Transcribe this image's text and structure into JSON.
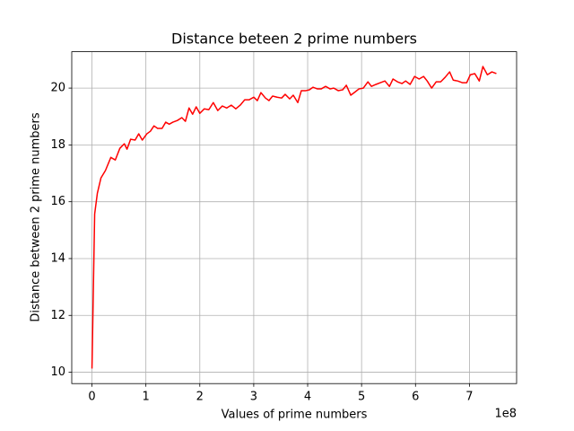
{
  "chart_data": {
    "type": "line",
    "title": "Distance beteen 2 prime numbers",
    "x_label": "Values of prime numbers",
    "y_label": "Distance between 2 prime numbers",
    "x_offset_label": "1e8",
    "x": [
      0,
      0.05,
      0.1,
      0.167,
      0.25,
      0.35,
      0.433,
      0.517,
      0.6,
      0.65,
      0.717,
      0.8,
      0.867,
      0.933,
      1.017,
      1.083,
      1.15,
      1.217,
      1.3,
      1.367,
      1.433,
      1.5,
      1.583,
      1.667,
      1.733,
      1.8,
      1.867,
      1.933,
      2.0,
      2.083,
      2.167,
      2.25,
      2.333,
      2.417,
      2.5,
      2.583,
      2.667,
      2.75,
      2.833,
      2.917,
      3.0,
      3.067,
      3.133,
      3.217,
      3.283,
      3.35,
      3.433,
      3.517,
      3.583,
      3.667,
      3.733,
      3.817,
      3.883,
      3.967,
      4.033,
      4.1,
      4.183,
      4.25,
      4.333,
      4.417,
      4.483,
      4.567,
      4.65,
      4.717,
      4.8,
      4.883,
      4.95,
      5.033,
      5.117,
      5.183,
      5.267,
      5.35,
      5.433,
      5.517,
      5.583,
      5.667,
      5.75,
      5.817,
      5.9,
      5.983,
      6.067,
      6.15,
      6.217,
      6.3,
      6.383,
      6.467,
      6.55,
      6.633,
      6.7,
      6.783,
      6.867,
      6.95,
      7.017,
      7.1,
      7.183,
      7.25,
      7.333,
      7.417,
      7.5
    ],
    "series": [
      {
        "color": "#ff0000",
        "values": [
          10.13,
          15.57,
          16.3,
          16.84,
          17.1,
          17.56,
          17.47,
          17.88,
          18.04,
          17.85,
          18.2,
          18.17,
          18.39,
          18.17,
          18.39,
          18.48,
          18.67,
          18.58,
          18.58,
          18.8,
          18.73,
          18.8,
          18.86,
          18.96,
          18.83,
          19.3,
          19.08,
          19.34,
          19.11,
          19.27,
          19.24,
          19.49,
          19.21,
          19.37,
          19.3,
          19.4,
          19.27,
          19.4,
          19.59,
          19.59,
          19.68,
          19.56,
          19.84,
          19.65,
          19.56,
          19.72,
          19.68,
          19.65,
          19.78,
          19.62,
          19.75,
          19.49,
          19.91,
          19.91,
          19.94,
          20.03,
          19.97,
          19.97,
          20.06,
          19.97,
          20.0,
          19.91,
          19.94,
          20.1,
          19.75,
          19.87,
          19.97,
          20.0,
          20.22,
          20.06,
          20.13,
          20.19,
          20.25,
          20.06,
          20.32,
          20.22,
          20.16,
          20.25,
          20.13,
          20.41,
          20.32,
          20.41,
          20.25,
          20.0,
          20.22,
          20.22,
          20.38,
          20.57,
          20.28,
          20.25,
          20.19,
          20.19,
          20.47,
          20.51,
          20.25,
          20.76,
          20.47,
          20.57,
          20.51
        ]
      }
    ],
    "xlim": [
      -0.375,
      7.875
    ],
    "ylim": [
      9.6,
      21.28
    ],
    "xticks": [
      0,
      1,
      2,
      3,
      4,
      5,
      6,
      7
    ],
    "yticks": [
      10,
      12,
      14,
      16,
      18,
      20
    ],
    "grid": true
  }
}
